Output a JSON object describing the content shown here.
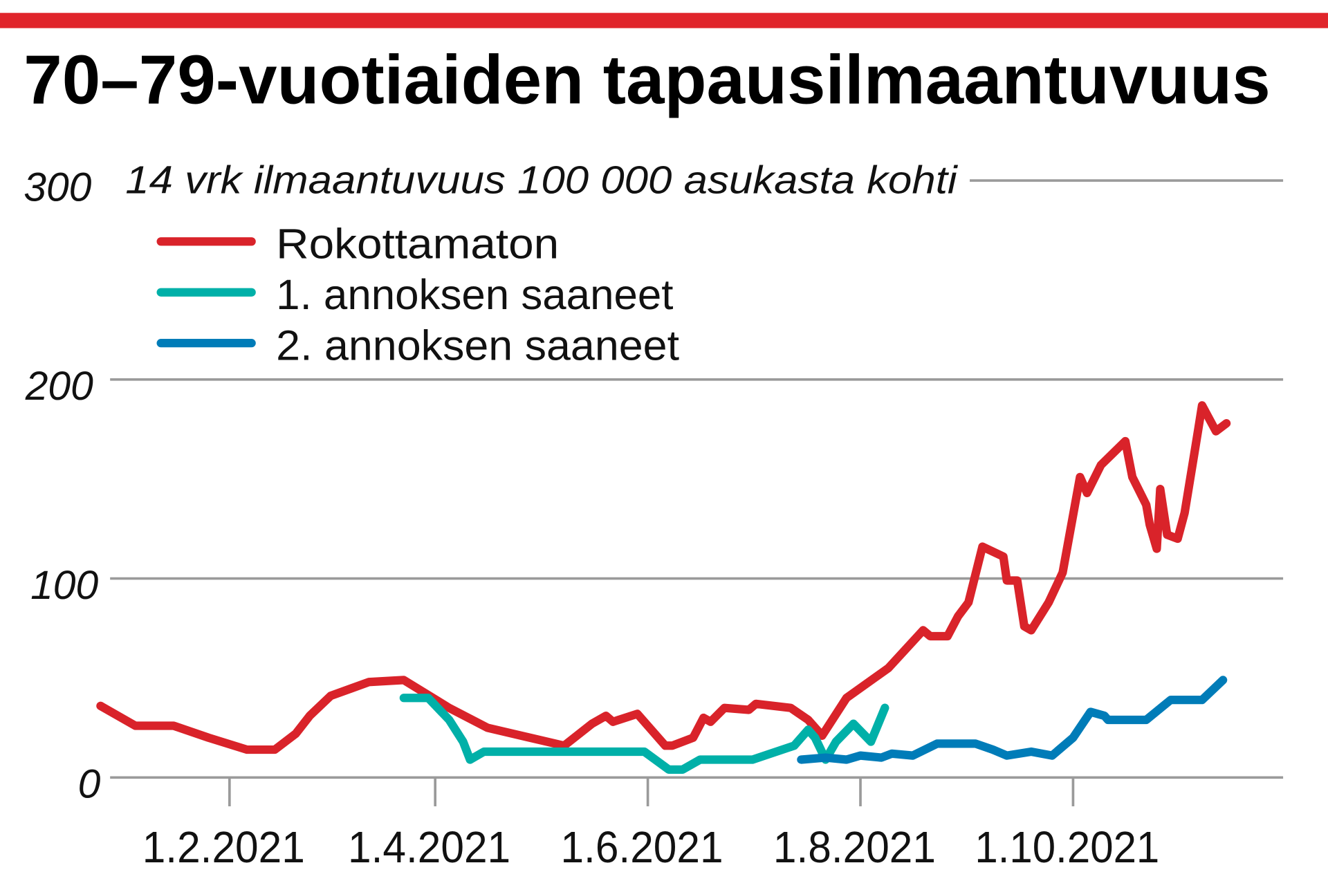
{
  "chart_data": {
    "type": "line",
    "title": "70–79-vuotiaiden tapausilmaantuvuus",
    "subtitle": "14 vrk ilmaantuvuus 100 000 asukasta kohti",
    "ylim": [
      0,
      300
    ],
    "yticks": [
      "0",
      "100",
      "200",
      "300"
    ],
    "ytick_values": [
      0,
      100,
      200,
      300
    ],
    "xticks": [
      {
        "label": "1.2.2021",
        "date": "2021-02-01"
      },
      {
        "label": "1.4.2021",
        "date": "2021-04-01"
      },
      {
        "label": "1.6.2021",
        "date": "2021-06-01"
      },
      {
        "label": "1.8.2021",
        "date": "2021-08-01"
      },
      {
        "label": "1.10.2021",
        "date": "2021-10-01"
      }
    ],
    "grid": true,
    "legend_position": "top-left",
    "series": [
      {
        "name": "Rokottamaton",
        "color": "#d9232a",
        "points": [
          [
            "2020-12-26",
            36
          ],
          [
            "2021-01-05",
            26
          ],
          [
            "2021-01-16",
            26
          ],
          [
            "2021-01-26",
            20
          ],
          [
            "2021-02-06",
            14
          ],
          [
            "2021-02-14",
            14
          ],
          [
            "2021-02-20",
            22
          ],
          [
            "2021-02-24",
            31
          ],
          [
            "2021-03-02",
            41
          ],
          [
            "2021-03-13",
            48
          ],
          [
            "2021-03-23",
            49
          ],
          [
            "2021-04-05",
            35
          ],
          [
            "2021-04-16",
            25
          ],
          [
            "2021-05-08",
            16
          ],
          [
            "2021-05-16",
            27
          ],
          [
            "2021-05-20",
            31
          ],
          [
            "2021-05-22",
            28
          ],
          [
            "2021-05-29",
            32
          ],
          [
            "2021-06-06",
            16
          ],
          [
            "2021-06-08",
            16
          ],
          [
            "2021-06-14",
            20
          ],
          [
            "2021-06-17",
            30
          ],
          [
            "2021-06-19",
            28
          ],
          [
            "2021-06-23",
            35
          ],
          [
            "2021-06-30",
            34
          ],
          [
            "2021-07-02",
            37
          ],
          [
            "2021-07-12",
            35
          ],
          [
            "2021-07-17",
            29
          ],
          [
            "2021-07-21",
            21
          ],
          [
            "2021-07-28",
            40
          ],
          [
            "2021-08-09",
            55
          ],
          [
            "2021-08-19",
            74
          ],
          [
            "2021-08-21",
            71
          ],
          [
            "2021-08-26",
            71
          ],
          [
            "2021-08-29",
            81
          ],
          [
            "2021-09-01",
            88
          ],
          [
            "2021-09-05",
            116
          ],
          [
            "2021-09-11",
            111
          ],
          [
            "2021-09-12",
            99
          ],
          [
            "2021-09-15",
            99
          ],
          [
            "2021-09-17",
            76
          ],
          [
            "2021-09-19",
            74
          ],
          [
            "2021-09-24",
            88
          ],
          [
            "2021-09-28",
            103
          ],
          [
            "2021-10-03",
            151
          ],
          [
            "2021-10-05",
            143
          ],
          [
            "2021-10-09",
            157
          ],
          [
            "2021-10-16",
            169
          ],
          [
            "2021-10-18",
            151
          ],
          [
            "2021-10-22",
            137
          ],
          [
            "2021-10-23",
            127
          ],
          [
            "2021-10-25",
            115
          ],
          [
            "2021-10-26",
            145
          ],
          [
            "2021-10-28",
            122
          ],
          [
            "2021-10-31",
            120
          ],
          [
            "2021-11-02",
            133
          ],
          [
            "2021-11-05",
            165
          ],
          [
            "2021-11-06",
            176
          ],
          [
            "2021-11-07",
            187
          ],
          [
            "2021-11-11",
            174
          ],
          [
            "2021-11-14",
            178
          ]
        ]
      },
      {
        "name": "1. annoksen saaneet",
        "color": "#00b0a8",
        "points": [
          [
            "2021-03-23",
            40
          ],
          [
            "2021-03-30",
            40
          ],
          [
            "2021-04-05",
            29
          ],
          [
            "2021-04-09",
            18
          ],
          [
            "2021-04-11",
            9
          ],
          [
            "2021-04-15",
            13
          ],
          [
            "2021-05-31",
            13
          ],
          [
            "2021-06-07",
            4
          ],
          [
            "2021-06-11",
            4
          ],
          [
            "2021-06-16",
            9
          ],
          [
            "2021-07-01",
            9
          ],
          [
            "2021-07-13",
            16
          ],
          [
            "2021-07-17",
            24
          ],
          [
            "2021-07-19",
            20
          ],
          [
            "2021-07-22",
            9
          ],
          [
            "2021-07-25",
            18
          ],
          [
            "2021-07-30",
            27
          ],
          [
            "2021-08-04",
            18
          ],
          [
            "2021-08-08",
            35
          ]
        ]
      },
      {
        "name": "2. annoksen saaneet",
        "color": "#007cb8",
        "points": [
          [
            "2021-07-15",
            9
          ],
          [
            "2021-07-22",
            10
          ],
          [
            "2021-07-28",
            9
          ],
          [
            "2021-08-01",
            11
          ],
          [
            "2021-08-07",
            10
          ],
          [
            "2021-08-10",
            12
          ],
          [
            "2021-08-16",
            11
          ],
          [
            "2021-08-23",
            17
          ],
          [
            "2021-09-03",
            17
          ],
          [
            "2021-09-08",
            14
          ],
          [
            "2021-09-12",
            11
          ],
          [
            "2021-09-19",
            13
          ],
          [
            "2021-09-25",
            11
          ],
          [
            "2021-10-01",
            20
          ],
          [
            "2021-10-06",
            33
          ],
          [
            "2021-10-10",
            31
          ],
          [
            "2021-10-11",
            29
          ],
          [
            "2021-10-22",
            29
          ],
          [
            "2021-10-29",
            39
          ],
          [
            "2021-11-07",
            39
          ],
          [
            "2021-11-13",
            49
          ]
        ]
      }
    ]
  }
}
